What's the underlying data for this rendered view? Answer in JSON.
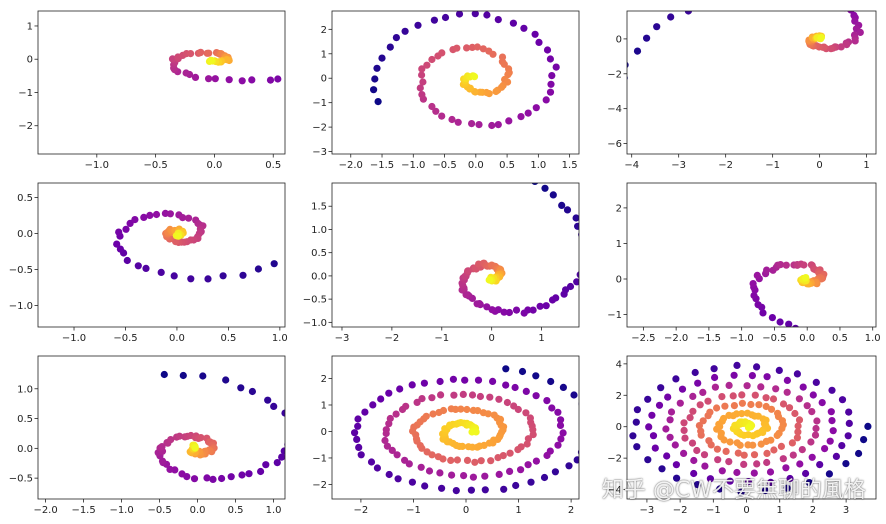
{
  "watermark": "知乎 @CW不要無聊的風格",
  "colormap": [
    "#0d0887",
    "#41049d",
    "#6a00a8",
    "#8f0da4",
    "#b12a90",
    "#cc4778",
    "#e16462",
    "#f2844b",
    "#fca636",
    "#fcce25",
    "#f0f921"
  ],
  "chart_data": [
    {
      "type": "scatter",
      "panel": "row1-col1",
      "xlim": [
        -1.5,
        0.6
      ],
      "ylim": [
        -2.85,
        1.45
      ],
      "xticks": [
        -1.0,
        -0.5,
        0.0,
        0.5
      ],
      "yticks": [
        -2,
        -1,
        0,
        1
      ],
      "xtick_labels": [
        "−1.0",
        "−0.5",
        "0.0",
        "0.5"
      ],
      "ytick_labels": [
        "−2",
        "−1",
        "0",
        "1"
      ],
      "spiral": {
        "kind": "log",
        "cx": 0.0,
        "cy": 0.0,
        "r_start": 0.05,
        "r_end": 2.0,
        "theta_start": 0.0,
        "turns": 1.6,
        "angle_offset": 4.2,
        "sx": 1.0,
        "sy": 1.0,
        "n": 70
      },
      "series": [
        {
          "values": []
        }
      ]
    },
    {
      "type": "scatter",
      "panel": "row1-col2",
      "xlim": [
        -2.3,
        1.65
      ],
      "ylim": [
        -3.1,
        2.75
      ],
      "xticks": [
        -2.0,
        -1.5,
        -1.0,
        -0.5,
        0.0,
        0.5,
        1.0,
        1.5
      ],
      "yticks": [
        -3,
        -2,
        -1,
        0,
        1,
        2
      ],
      "xtick_labels": [
        "−2.0",
        "−1.5",
        "−1.0",
        "−0.5",
        "0.0",
        "0.5",
        "1.0",
        "1.5"
      ],
      "ytick_labels": [
        "−3",
        "−2",
        "−1",
        "0",
        "1",
        "2"
      ],
      "spiral": {
        "kind": "arch",
        "cx": 0.0,
        "cy": 0.0,
        "r_start": 0.05,
        "r_end": 3.0,
        "theta_start": 0.0,
        "turns": 2.2,
        "angle_offset": 2.2,
        "sx": 0.55,
        "sy": 1.0,
        "n": 90
      },
      "series": [
        {
          "values": []
        }
      ]
    },
    {
      "type": "scatter",
      "panel": "row1-col3",
      "xlim": [
        -4.1,
        1.2
      ],
      "ylim": [
        -6.6,
        1.6
      ],
      "xticks": [
        -4,
        -3,
        -2,
        -1,
        0,
        1
      ],
      "yticks": [
        -6,
        -4,
        -2,
        0
      ],
      "xtick_labels": [
        "−4",
        "−3",
        "−2",
        "−1",
        "0",
        "1"
      ],
      "ytick_labels": [
        "−6",
        "−4",
        "−2",
        "0"
      ],
      "spiral": {
        "kind": "log",
        "cx": 0.0,
        "cy": 0.0,
        "r_start": 0.05,
        "r_end": 4.5,
        "theta_start": 0.0,
        "turns": 1.4,
        "angle_offset": 1.0,
        "sx": 1.0,
        "sy": 1.4,
        "n": 70
      },
      "series": [
        {
          "values": []
        }
      ]
    },
    {
      "type": "scatter",
      "panel": "row2-col1",
      "xlim": [
        -1.35,
        1.05
      ],
      "ylim": [
        -1.3,
        0.7
      ],
      "xticks": [
        -1.0,
        -0.5,
        0.0,
        0.5,
        1.0
      ],
      "yticks": [
        -1.0,
        -0.5,
        0.0,
        0.5
      ],
      "xtick_labels": [
        "−1.0",
        "−0.5",
        "0.0",
        "0.5",
        "1.0"
      ],
      "ytick_labels": [
        "−1.0",
        "−0.5",
        "0.0",
        "0.5"
      ],
      "spiral": {
        "kind": "log",
        "cx": 0.0,
        "cy": 0.0,
        "r_start": 0.03,
        "r_end": 1.3,
        "theta_start": 0.0,
        "turns": 2.2,
        "angle_offset": 5.0,
        "sx": 1.0,
        "sy": 0.7,
        "n": 80
      },
      "series": [
        {
          "values": []
        }
      ]
    },
    {
      "type": "scatter",
      "panel": "row2-col2",
      "xlim": [
        -3.2,
        1.75
      ],
      "ylim": [
        -1.1,
        2.0
      ],
      "xticks": [
        -3,
        -2,
        -1,
        0,
        1
      ],
      "yticks": [
        -1.0,
        -0.5,
        0.0,
        0.5,
        1.0,
        1.5
      ],
      "xtick_labels": [
        "−3",
        "−2",
        "−1",
        "0",
        "1"
      ],
      "ytick_labels": [
        "−1.0",
        "−0.5",
        "0.0",
        "0.5",
        "1.0",
        "1.5"
      ],
      "spiral": {
        "kind": "log",
        "cx": 0.0,
        "cy": 0.0,
        "r_start": 0.08,
        "r_end": 2.8,
        "theta_start": 0.0,
        "turns": 1.5,
        "angle_offset": 4.4,
        "sx": 1.0,
        "sy": 0.75,
        "n": 100
      },
      "series": [
        {
          "values": []
        }
      ]
    },
    {
      "type": "scatter",
      "panel": "row2-col3",
      "xlim": [
        -2.75,
        1.05
      ],
      "ylim": [
        -1.35,
        2.7
      ],
      "xticks": [
        -2.5,
        -2.0,
        -1.5,
        -1.0,
        -0.5,
        0.0,
        0.5,
        1.0
      ],
      "yticks": [
        -1,
        0,
        1,
        2
      ],
      "xtick_labels": [
        "−2.5",
        "−2.0",
        "−1.5",
        "−1.0",
        "−0.5",
        "0.0",
        "0.5",
        "1.0"
      ],
      "ytick_labels": [
        "−1",
        "0",
        "1",
        "2"
      ],
      "spiral": {
        "kind": "log",
        "cx": 0.0,
        "cy": 0.0,
        "r_start": 0.05,
        "r_end": 2.7,
        "theta_start": 0.0,
        "turns": 1.5,
        "angle_offset": 3.0,
        "sx": 1.0,
        "sy": 1.0,
        "n": 80
      },
      "series": [
        {
          "values": []
        }
      ]
    },
    {
      "type": "scatter",
      "panel": "row3-col1",
      "xlim": [
        -2.1,
        1.15
      ],
      "ylim": [
        -0.85,
        1.55
      ],
      "xticks": [
        -2.0,
        -1.5,
        -1.0,
        -0.5,
        0.0,
        0.5,
        1.0
      ],
      "yticks": [
        -0.5,
        0.0,
        0.5,
        1.0
      ],
      "xtick_labels": [
        "−2.0",
        "−1.5",
        "−1.0",
        "−0.5",
        "0.0",
        "0.5",
        "1.0"
      ],
      "ytick_labels": [
        "−0.5",
        "0.0",
        "0.5",
        "1.0"
      ],
      "spiral": {
        "kind": "log",
        "cx": 0.0,
        "cy": 0.0,
        "r_start": 0.05,
        "r_end": 2.0,
        "theta_start": 0.0,
        "turns": 2.0,
        "angle_offset": 1.8,
        "sx": 1.0,
        "sy": 0.65,
        "n": 90
      },
      "series": [
        {
          "values": []
        }
      ]
    },
    {
      "type": "scatter",
      "panel": "row3-col2",
      "xlim": [
        -2.55,
        2.15
      ],
      "ylim": [
        -2.55,
        2.85
      ],
      "xticks": [
        -2,
        -1,
        0,
        1,
        2
      ],
      "yticks": [
        -2,
        -1,
        0,
        1,
        2
      ],
      "xtick_labels": [
        "−2",
        "−1",
        "0",
        "1",
        "2"
      ],
      "ytick_labels": [
        "−2",
        "−1",
        "0",
        "1",
        "2"
      ],
      "spiral": {
        "kind": "arch",
        "cx": 0.0,
        "cy": 0.0,
        "r_start": 0.15,
        "r_end": 2.5,
        "theta_start": 0.0,
        "turns": 4.2,
        "angle_offset": 0.0,
        "sx": 1.0,
        "sy": 1.0,
        "n": 200
      },
      "series": [
        {
          "values": []
        }
      ]
    },
    {
      "type": "scatter",
      "panel": "row3-col3",
      "xlim": [
        -3.6,
        3.9
      ],
      "ylim": [
        -4.6,
        4.5
      ],
      "xticks": [
        -3,
        -2,
        -1,
        0,
        1,
        2,
        3
      ],
      "yticks": [
        -4,
        -2,
        0,
        2,
        4
      ],
      "xtick_labels": [
        "−3",
        "−2",
        "−1",
        "0",
        "1",
        "2",
        "3"
      ],
      "ytick_labels": [
        "−4",
        "−2",
        "0",
        "2",
        "4"
      ],
      "spiral": {
        "kind": "arch",
        "cx": 0.0,
        "cy": 0.0,
        "r_start": 0.1,
        "r_end": 4.3,
        "theta_start": 0.0,
        "turns": 7.0,
        "angle_offset": 0.0,
        "sx": 0.85,
        "sy": 1.0,
        "n": 220
      },
      "series": [
        {
          "values": []
        }
      ]
    }
  ]
}
